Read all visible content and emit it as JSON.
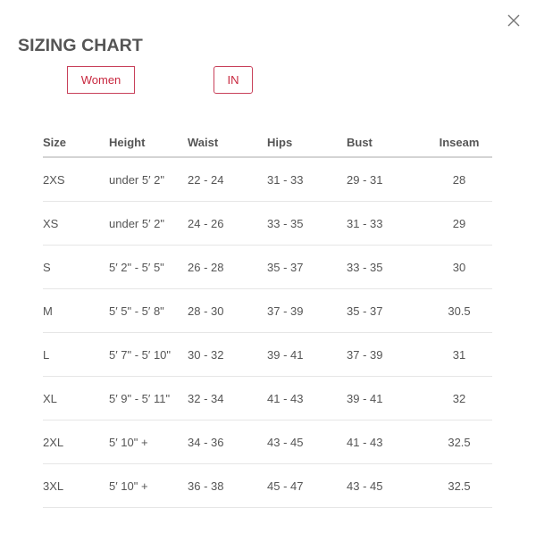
{
  "title": "SIZING CHART",
  "close_icon": "close-icon",
  "filters": {
    "gender": "Women",
    "unit": "IN"
  },
  "colors": {
    "accent": "#c8283f",
    "text": "#555555"
  },
  "table": {
    "headers": [
      "Size",
      "Height",
      "Waist",
      "Hips",
      "Bust",
      "Inseam"
    ],
    "rows": [
      [
        "2XS",
        "under 5′ 2\"",
        "22 - 24",
        "31 - 33",
        "29 - 31",
        "28"
      ],
      [
        "XS",
        "under 5′ 2\"",
        "24 - 26",
        "33 - 35",
        "31 - 33",
        "29"
      ],
      [
        "S",
        "5′ 2\" - 5′ 5\"",
        "26 - 28",
        "35 - 37",
        "33 - 35",
        "30"
      ],
      [
        "M",
        "5′ 5\" - 5′ 8\"",
        "28 - 30",
        "37 - 39",
        "35 - 37",
        "30.5"
      ],
      [
        "L",
        "5′ 7\" - 5′ 10\"",
        "30 - 32",
        "39 - 41",
        "37 - 39",
        "31"
      ],
      [
        "XL",
        "5′ 9\" - 5′ 11\"",
        "32 - 34",
        "41 - 43",
        "39 - 41",
        "32"
      ],
      [
        "2XL",
        "5′ 10\" +",
        "34 - 36",
        "43 - 45",
        "41 - 43",
        "32.5"
      ],
      [
        "3XL",
        "5′ 10\" +",
        "36 - 38",
        "45 - 47",
        "43 - 45",
        "32.5"
      ]
    ]
  }
}
